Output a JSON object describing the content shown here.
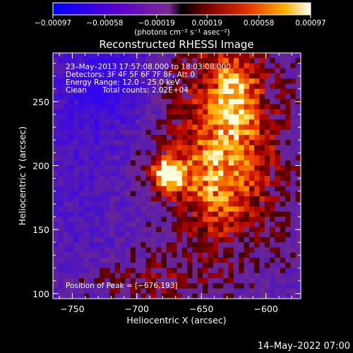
{
  "chart_data": {
    "type": "heatmap",
    "title": "Reconstructed RHESSI Image",
    "xlabel": "Heliocentric X (arcsec)",
    "ylabel": "Heliocentric Y (arcsec)",
    "xlim": [
      -765,
      -573
    ],
    "ylim": [
      96,
      288
    ],
    "x_ticks": [
      -750,
      -700,
      -650,
      -600
    ],
    "y_ticks": [
      100,
      150,
      200,
      250
    ],
    "x_tick_labels": [
      "−750",
      "−700",
      "−650",
      "−600"
    ],
    "y_tick_labels": [
      "100",
      "150",
      "200",
      "250"
    ],
    "colorbar": {
      "range": [
        -0.00097,
        0.00097
      ],
      "ticks": [
        -0.00097,
        -0.00058,
        -0.00019,
        0.00019,
        0.00058,
        0.00097
      ],
      "tick_labels": [
        "−0.00097",
        "−0.00058",
        "−0.00019",
        "0.00019",
        "0.00058",
        "0.00097"
      ],
      "units": "(photons cm⁻² s⁻¹ asec⁻²)"
    },
    "annotations": {
      "time": "23–May–2013 17:57:08.000 to 18:03:08.000",
      "detectors": "Detectors: 3F 4F 5F 6F 7F 8F, Att 0",
      "energy": "Energy Range: 12.0 – 25.0 keV",
      "clean_method": "Clean",
      "total_counts": "Total counts: 2.02E+04",
      "peak": "Position of Peak = [−676,193]"
    },
    "peak_position": [
      -676,
      193
    ]
  },
  "footer": {
    "date": "14–May–2022 07:00"
  },
  "colors": {
    "background": "#000000",
    "text": "#ffffff"
  }
}
